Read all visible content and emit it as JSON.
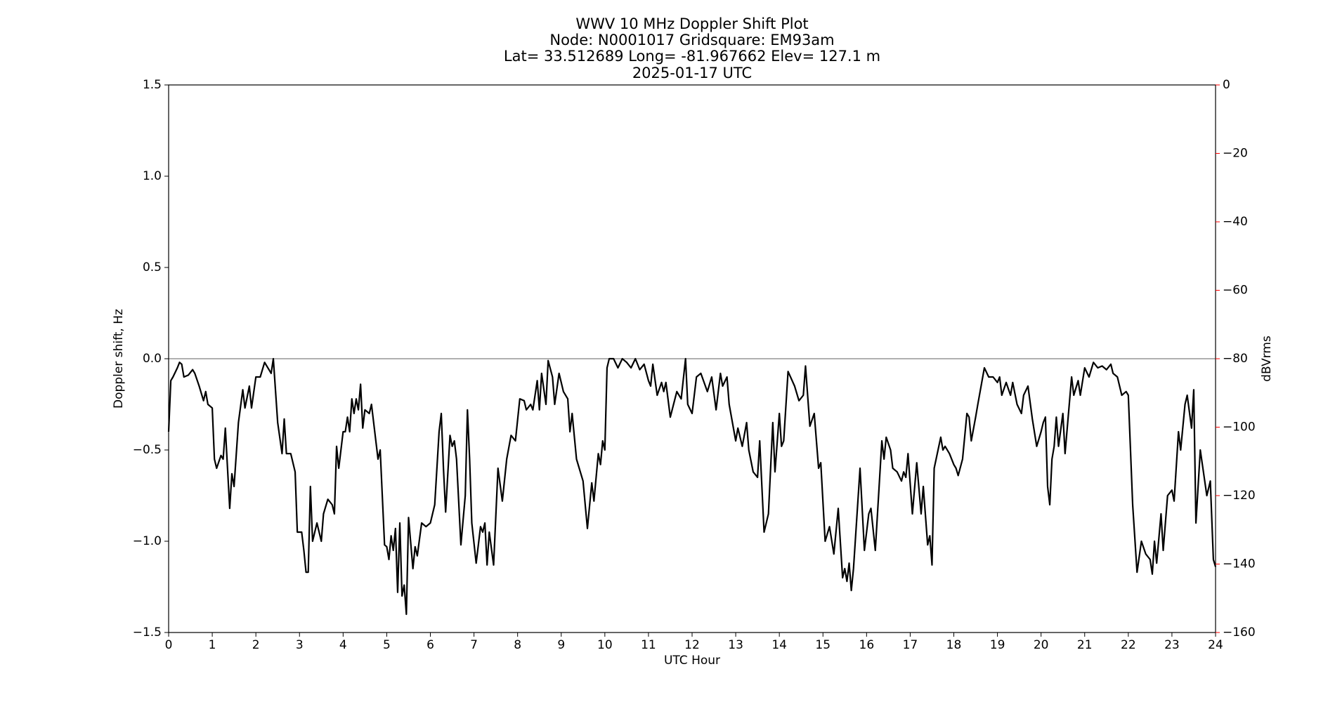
{
  "chart_data": {
    "type": "line",
    "title_lines": [
      "WWV 10 MHz Doppler Shift Plot",
      "Node:  N0001017     Gridsquare:  EM93am",
      "Lat= 33.512689    Long= -81.967662    Elev= 127.1 m",
      "2025-01-17  UTC"
    ],
    "x_label": "UTC Hour",
    "y_label": "Doppler shift, Hz",
    "y2_label": "dBVrms",
    "color": "#000000",
    "y2_color": "#ff0000",
    "reference_line": 0,
    "reference_color": "#808080",
    "xlim": [
      0,
      24
    ],
    "xticks": [
      0,
      1,
      2,
      3,
      4,
      5,
      6,
      7,
      8,
      9,
      10,
      11,
      12,
      13,
      14,
      15,
      16,
      17,
      18,
      19,
      20,
      21,
      22,
      23,
      24
    ],
    "ylim": [
      -1.5,
      1.5
    ],
    "yticks": [
      {
        "value": -1.5,
        "label": "−1.5"
      },
      {
        "value": -1.0,
        "label": "−1.0"
      },
      {
        "value": -0.5,
        "label": "−0.5"
      },
      {
        "value": 0,
        "label": "0.0"
      },
      0.5,
      {
        "value": 1.0,
        "label": "1.0"
      },
      1.5
    ],
    "y2lim": [
      -160,
      0
    ],
    "y2ticks": [
      {
        "value": -160,
        "label": "−160"
      },
      {
        "value": -140,
        "label": "−140"
      },
      {
        "value": -120,
        "label": "−120"
      },
      {
        "value": -100,
        "label": "−100"
      },
      {
        "value": -80,
        "label": "−80"
      },
      {
        "value": -60,
        "label": "−60"
      },
      {
        "value": -40,
        "label": "−40"
      },
      {
        "value": -20,
        "label": "−20"
      },
      0
    ],
    "x": [
      0,
      0.05,
      0.1,
      0.2,
      0.25,
      0.3,
      0.35,
      0.45,
      0.55,
      0.6,
      0.7,
      0.8,
      0.85,
      0.9,
      1,
      1.05,
      1.1,
      1.2,
      1.25,
      1.3,
      1.35,
      1.4,
      1.45,
      1.5,
      1.6,
      1.7,
      1.75,
      1.85,
      1.9,
      2,
      2.1,
      2.2,
      2.3,
      2.35,
      2.4,
      2.5,
      2.6,
      2.65,
      2.7,
      2.8,
      2.9,
      2.95,
      3.05,
      3.1,
      3.15,
      3.2,
      3.25,
      3.3,
      3.4,
      3.5,
      3.55,
      3.65,
      3.75,
      3.8,
      3.85,
      3.9,
      4,
      4.05,
      4.1,
      4.15,
      4.2,
      4.25,
      4.3,
      4.35,
      4.4,
      4.45,
      4.5,
      4.6,
      4.65,
      4.8,
      4.85,
      4.95,
      5,
      5.05,
      5.1,
      5.15,
      5.2,
      5.25,
      5.3,
      5.35,
      5.4,
      5.45,
      5.5,
      5.6,
      5.65,
      5.7,
      5.8,
      5.9,
      6,
      6.1,
      6.2,
      6.25,
      6.3,
      6.35,
      6.45,
      6.5,
      6.55,
      6.6,
      6.7,
      6.8,
      6.85,
      6.9,
      6.95,
      7.05,
      7.15,
      7.2,
      7.25,
      7.3,
      7.35,
      7.45,
      7.55,
      7.65,
      7.75,
      7.85,
      7.95,
      8.05,
      8.15,
      8.2,
      8.3,
      8.35,
      8.45,
      8.5,
      8.55,
      8.65,
      8.7,
      8.8,
      8.85,
      8.95,
      9.05,
      9.15,
      9.2,
      9.25,
      9.35,
      9.5,
      9.6,
      9.7,
      9.75,
      9.85,
      9.9,
      9.95,
      10,
      10.05,
      10.1,
      10.2,
      10.3,
      10.4,
      10.5,
      10.6,
      10.7,
      10.8,
      10.9,
      11,
      11.05,
      11.1,
      11.2,
      11.3,
      11.35,
      11.4,
      11.5,
      11.65,
      11.75,
      11.85,
      11.9,
      12,
      12.1,
      12.2,
      12.35,
      12.45,
      12.55,
      12.65,
      12.7,
      12.8,
      12.85,
      13,
      13.05,
      13.15,
      13.25,
      13.3,
      13.4,
      13.5,
      13.55,
      13.65,
      13.75,
      13.85,
      13.9,
      14,
      14.05,
      14.1,
      14.2,
      14.35,
      14.45,
      14.55,
      14.6,
      14.7,
      14.8,
      14.9,
      14.95,
      15.05,
      15.15,
      15.25,
      15.35,
      15.45,
      15.5,
      15.55,
      15.6,
      15.65,
      15.7,
      15.85,
      15.95,
      16.05,
      16.1,
      16.2,
      16.35,
      16.4,
      16.45,
      16.55,
      16.6,
      16.7,
      16.8,
      16.85,
      16.9,
      16.95,
      17.05,
      17.15,
      17.25,
      17.3,
      17.4,
      17.45,
      17.5,
      17.55,
      17.7,
      17.75,
      17.8,
      17.9,
      18,
      18.05,
      18.1,
      18.2,
      18.3,
      18.35,
      18.4,
      18.5,
      18.55,
      18.7,
      18.8,
      18.9,
      19,
      19.05,
      19.1,
      19.2,
      19.3,
      19.35,
      19.45,
      19.55,
      19.6,
      19.7,
      19.8,
      19.9,
      20,
      20.05,
      20.1,
      20.15,
      20.2,
      20.25,
      20.3,
      20.35,
      20.4,
      20.5,
      20.55,
      20.7,
      20.75,
      20.85,
      20.9,
      21,
      21.1,
      21.2,
      21.3,
      21.4,
      21.5,
      21.6,
      21.65,
      21.75,
      21.85,
      21.95,
      22,
      22.1,
      22.2,
      22.3,
      22.4,
      22.5,
      22.55,
      22.6,
      22.65,
      22.75,
      22.8,
      22.9,
      23,
      23.05,
      23.15,
      23.2,
      23.3,
      23.35,
      23.45,
      23.5,
      23.55,
      23.65,
      23.8,
      23.88,
      23.95,
      24
    ],
    "values": [
      -0.4,
      -0.12,
      -0.1,
      -0.05,
      -0.02,
      -0.03,
      -0.1,
      -0.09,
      -0.06,
      -0.08,
      -0.15,
      -0.23,
      -0.18,
      -0.25,
      -0.27,
      -0.55,
      -0.6,
      -0.53,
      -0.55,
      -0.38,
      -0.6,
      -0.82,
      -0.63,
      -0.7,
      -0.35,
      -0.17,
      -0.27,
      -0.15,
      -0.27,
      -0.1,
      -0.1,
      -0.02,
      -0.06,
      -0.08,
      0,
      -0.35,
      -0.52,
      -0.33,
      -0.52,
      -0.52,
      -0.62,
      -0.95,
      -0.95,
      -1.05,
      -1.17,
      -1.17,
      -0.7,
      -1,
      -0.9,
      -1,
      -0.85,
      -0.77,
      -0.8,
      -0.85,
      -0.48,
      -0.6,
      -0.4,
      -0.4,
      -0.32,
      -0.4,
      -0.22,
      -0.3,
      -0.22,
      -0.28,
      -0.14,
      -0.38,
      -0.28,
      -0.3,
      -0.25,
      -0.55,
      -0.5,
      -1.02,
      -1.03,
      -1.1,
      -0.97,
      -1.05,
      -0.93,
      -1.28,
      -0.9,
      -1.3,
      -1.24,
      -1.4,
      -0.87,
      -1.15,
      -1.03,
      -1.08,
      -0.9,
      -0.92,
      -0.9,
      -0.8,
      -0.4,
      -0.3,
      -0.6,
      -0.84,
      -0.42,
      -0.48,
      -0.45,
      -0.55,
      -1.02,
      -0.75,
      -0.28,
      -0.55,
      -0.9,
      -1.12,
      -0.92,
      -0.95,
      -0.9,
      -1.13,
      -0.95,
      -1.13,
      -0.6,
      -0.78,
      -0.55,
      -0.42,
      -0.45,
      -0.22,
      -0.23,
      -0.28,
      -0.25,
      -0.28,
      -0.12,
      -0.28,
      -0.08,
      -0.25,
      -0.01,
      -0.1,
      -0.25,
      -0.08,
      -0.18,
      -0.22,
      -0.4,
      -0.3,
      -0.55,
      -0.67,
      -0.93,
      -0.68,
      -0.78,
      -0.52,
      -0.58,
      -0.45,
      -0.5,
      -0.05,
      0,
      0,
      -0.05,
      0,
      -0.02,
      -0.05,
      0,
      -0.06,
      -0.03,
      -0.12,
      -0.15,
      -0.03,
      -0.2,
      -0.13,
      -0.18,
      -0.13,
      -0.32,
      -0.18,
      -0.22,
      0,
      -0.25,
      -0.3,
      -0.1,
      -0.08,
      -0.18,
      -0.1,
      -0.28,
      -0.08,
      -0.15,
      -0.1,
      -0.25,
      -0.45,
      -0.38,
      -0.48,
      -0.35,
      -0.5,
      -0.62,
      -0.65,
      -0.45,
      -0.95,
      -0.85,
      -0.35,
      -0.62,
      -0.3,
      -0.48,
      -0.45,
      -0.07,
      -0.15,
      -0.23,
      -0.2,
      -0.04,
      -0.37,
      -0.3,
      -0.6,
      -0.57,
      -1,
      -0.92,
      -1.07,
      -0.82,
      -1.2,
      -1.15,
      -1.22,
      -1.12,
      -1.27,
      -1.15,
      -0.6,
      -1.05,
      -0.85,
      -0.82,
      -1.05,
      -0.45,
      -0.55,
      -0.43,
      -0.5,
      -0.6,
      -0.62,
      -0.67,
      -0.62,
      -0.65,
      -0.52,
      -0.85,
      -0.57,
      -0.85,
      -0.7,
      -1.02,
      -0.97,
      -1.13,
      -0.6,
      -0.43,
      -0.5,
      -0.48,
      -0.52,
      -0.58,
      -0.6,
      -0.64,
      -0.55,
      -0.3,
      -0.32,
      -0.45,
      -0.32,
      -0.25,
      -0.05,
      -0.1,
      -0.1,
      -0.13,
      -0.1,
      -0.2,
      -0.13,
      -0.2,
      -0.13,
      -0.25,
      -0.3,
      -0.2,
      -0.15,
      -0.33,
      -0.48,
      -0.4,
      -0.35,
      -0.32,
      -0.7,
      -0.8,
      -0.55,
      -0.48,
      -0.32,
      -0.48,
      -0.3,
      -0.52,
      -0.1,
      -0.2,
      -0.12,
      -0.2,
      -0.05,
      -0.1,
      -0.02,
      -0.05,
      -0.04,
      -0.06,
      -0.03,
      -0.08,
      -0.1,
      -0.2,
      -0.18,
      -0.2,
      -0.8,
      -1.17,
      -1,
      -1.07,
      -1.1,
      -1.18,
      -1,
      -1.12,
      -0.85,
      -1.05,
      -0.75,
      -0.72,
      -0.78,
      -0.4,
      -0.5,
      -0.25,
      -0.2,
      -0.38,
      -0.17,
      -0.9,
      -0.5,
      -0.75,
      -0.67,
      -1.1,
      -1.14
    ]
  }
}
